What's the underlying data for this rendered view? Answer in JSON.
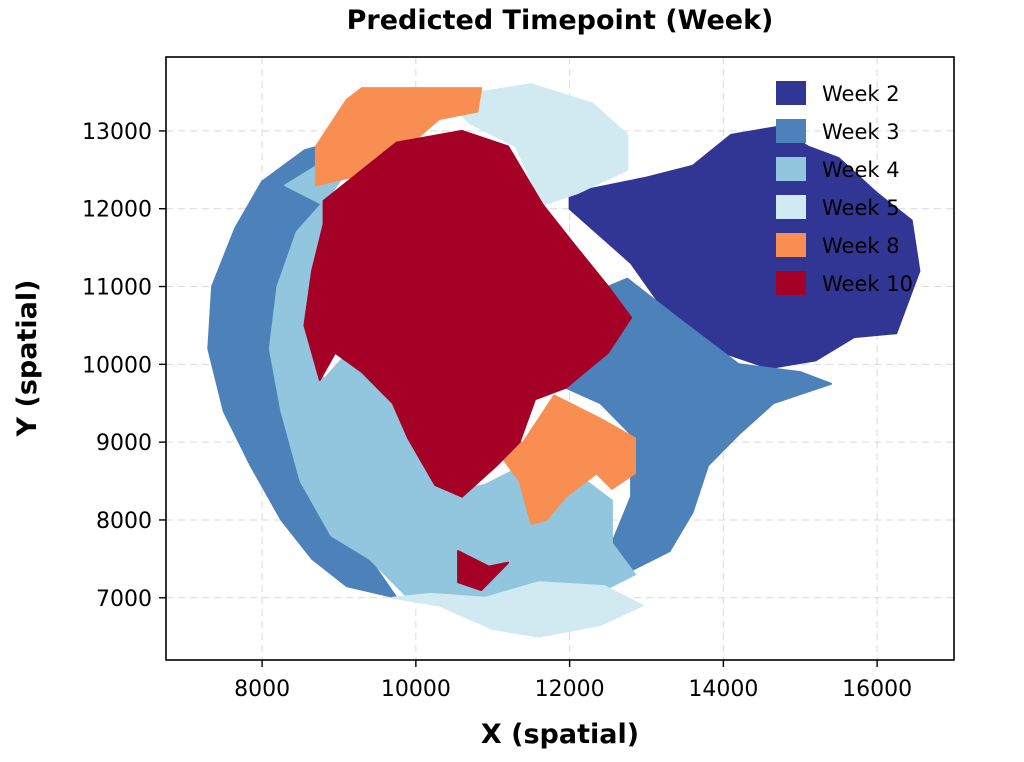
{
  "chart_data": {
    "type": "scatter",
    "title": "Predicted Timepoint (Week)",
    "xlabel": "X (spatial)",
    "ylabel": "Y (spatial)",
    "xlim": [
      6750,
      17000
    ],
    "ylim": [
      6200,
      13950
    ],
    "xticks": [
      8000,
      10000,
      12000,
      14000,
      16000
    ],
    "yticks": [
      7000,
      8000,
      9000,
      10000,
      11000,
      12000,
      13000
    ],
    "grid": true,
    "legend_position": "top-right",
    "series": [
      {
        "name": "Week 2",
        "color": "#313695",
        "regions": [
          [
            [
              12000,
              12200
            ],
            [
              13000,
              12400
            ],
            [
              13600,
              12550
            ],
            [
              14100,
              12950
            ],
            [
              14700,
              13050
            ],
            [
              15100,
              12800
            ],
            [
              15500,
              12650
            ],
            [
              16000,
              12200
            ],
            [
              16450,
              11850
            ],
            [
              16550,
              11200
            ],
            [
              16250,
              10400
            ],
            [
              15700,
              10350
            ],
            [
              15200,
              10050
            ],
            [
              14600,
              9950
            ],
            [
              14000,
              10150
            ],
            [
              13300,
              10600
            ],
            [
              12800,
              11300
            ],
            [
              12000,
              12000
            ]
          ]
        ]
      },
      {
        "name": "Week 3",
        "color": "#4d81b9",
        "regions": [
          [
            [
              9450,
              13000
            ],
            [
              8550,
              12750
            ],
            [
              8000,
              12350
            ],
            [
              7650,
              11750
            ],
            [
              7350,
              11000
            ],
            [
              7300,
              10200
            ],
            [
              7500,
              9400
            ],
            [
              7850,
              8700
            ],
            [
              8250,
              8000
            ],
            [
              8650,
              7500
            ],
            [
              9100,
              7150
            ],
            [
              9750,
              7000
            ],
            [
              9400,
              7500
            ],
            [
              8900,
              7800
            ],
            [
              8500,
              8500
            ],
            [
              8250,
              9400
            ],
            [
              8100,
              10200
            ],
            [
              8200,
              11000
            ],
            [
              8450,
              11700
            ],
            [
              8900,
              12200
            ]
          ],
          [
            [
              12150,
              10850
            ],
            [
              12750,
              11100
            ],
            [
              13400,
              10600
            ],
            [
              14200,
              10000
            ],
            [
              15000,
              9900
            ],
            [
              15400,
              9750
            ],
            [
              14650,
              9500
            ],
            [
              14200,
              9100
            ],
            [
              13800,
              8700
            ],
            [
              13600,
              8100
            ],
            [
              13300,
              7600
            ],
            [
              12800,
              7350
            ],
            [
              12550,
              7700
            ],
            [
              12800,
              8300
            ],
            [
              12800,
              9100
            ],
            [
              12400,
              9500
            ],
            [
              11950,
              9700
            ],
            [
              12300,
              10200
            ]
          ]
        ]
      },
      {
        "name": "Week 4",
        "color": "#92c5de",
        "regions": [
          [
            [
              8300,
              12300
            ],
            [
              9450,
              13000
            ],
            [
              8900,
              12200
            ],
            [
              8450,
              11700
            ],
            [
              8200,
              11000
            ],
            [
              8100,
              10200
            ],
            [
              8250,
              9400
            ],
            [
              8500,
              8500
            ],
            [
              8900,
              7800
            ],
            [
              9400,
              7500
            ],
            [
              9900,
              7000
            ],
            [
              10700,
              6950
            ],
            [
              11500,
              7150
            ],
            [
              12350,
              7050
            ],
            [
              12850,
              7300
            ],
            [
              12550,
              7700
            ],
            [
              12550,
              8250
            ],
            [
              12150,
              8550
            ],
            [
              11600,
              8800
            ],
            [
              10900,
              8450
            ],
            [
              10400,
              8350
            ],
            [
              9900,
              9100
            ],
            [
              9600,
              9700
            ],
            [
              9250,
              10300
            ],
            [
              8800,
              9800
            ],
            [
              8600,
              10600
            ],
            [
              8750,
              11300
            ],
            [
              8900,
              12000
            ]
          ]
        ]
      },
      {
        "name": "Week 5",
        "color": "#d1e9f1",
        "regions": [
          [
            [
              10850,
              13500
            ],
            [
              11500,
              13600
            ],
            [
              12300,
              13350
            ],
            [
              12750,
              12950
            ],
            [
              12750,
              12500
            ],
            [
              12100,
              12200
            ],
            [
              11650,
              12050
            ],
            [
              11300,
              12800
            ],
            [
              10700,
              13100
            ],
            [
              10500,
              13300
            ]
          ],
          [
            [
              9700,
              7000
            ],
            [
              10300,
              6900
            ],
            [
              11000,
              6600
            ],
            [
              11600,
              6500
            ],
            [
              12400,
              6650
            ],
            [
              12950,
              6900
            ],
            [
              12450,
              7150
            ],
            [
              11600,
              7200
            ],
            [
              10900,
              7000
            ],
            [
              10200,
              7050
            ]
          ]
        ]
      },
      {
        "name": "Week 8",
        "color": "#f98e52",
        "regions": [
          [
            [
              9300,
              13550
            ],
            [
              10850,
              13550
            ],
            [
              10800,
              13250
            ],
            [
              10300,
              13150
            ],
            [
              9950,
              12850
            ],
            [
              9350,
              12450
            ],
            [
              8700,
              12300
            ],
            [
              8700,
              12800
            ],
            [
              9100,
              13400
            ]
          ],
          [
            [
              10200,
              12100
            ],
            [
              10600,
              12300
            ],
            [
              10950,
              11800
            ],
            [
              10900,
              11250
            ],
            [
              10450,
              11100
            ],
            [
              10250,
              10750
            ],
            [
              10050,
              10800
            ],
            [
              9950,
              11500
            ]
          ],
          [
            [
              9100,
              10500
            ],
            [
              9350,
              10550
            ],
            [
              9400,
              10200
            ],
            [
              9100,
              10100
            ]
          ],
          [
            [
              11400,
              9000
            ],
            [
              11800,
              9600
            ],
            [
              12400,
              9300
            ],
            [
              12850,
              9050
            ],
            [
              12850,
              8600
            ],
            [
              12550,
              8400
            ],
            [
              12350,
              8600
            ],
            [
              11950,
              8300
            ],
            [
              11700,
              8000
            ],
            [
              11500,
              7950
            ],
            [
              11350,
              8500
            ],
            [
              11050,
              8900
            ]
          ]
        ]
      },
      {
        "name": "Week 10",
        "color": "#a50026",
        "regions": [
          [
            [
              8800,
              12100
            ],
            [
              9750,
              12850
            ],
            [
              10600,
              13000
            ],
            [
              11200,
              12800
            ],
            [
              11650,
              12050
            ],
            [
              12050,
              11550
            ],
            [
              12500,
              11000
            ],
            [
              12800,
              10600
            ],
            [
              12500,
              10150
            ],
            [
              11950,
              9700
            ],
            [
              11550,
              9550
            ],
            [
              11350,
              9000
            ],
            [
              11050,
              8700
            ],
            [
              10600,
              8300
            ],
            [
              10250,
              8450
            ],
            [
              9900,
              9050
            ],
            [
              9700,
              9500
            ],
            [
              9300,
              9900
            ],
            [
              8950,
              10150
            ],
            [
              8750,
              9800
            ],
            [
              8550,
              10500
            ],
            [
              8650,
              11200
            ],
            [
              8800,
              11800
            ]
          ],
          [
            [
              10550,
              7600
            ],
            [
              10950,
              7400
            ],
            [
              11200,
              7450
            ],
            [
              10850,
              7100
            ],
            [
              10550,
              7200
            ]
          ]
        ]
      }
    ]
  }
}
